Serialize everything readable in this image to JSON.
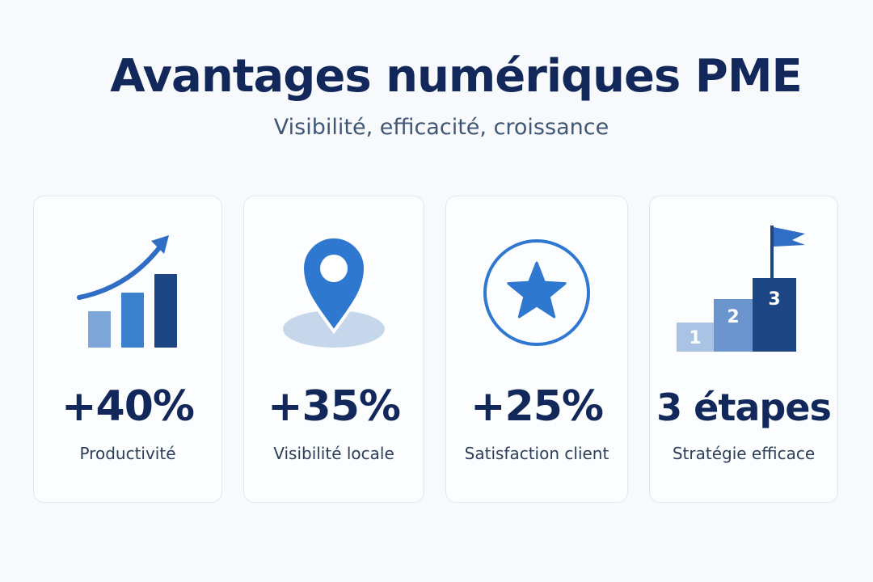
{
  "header": {
    "title": "Avantages numériques PME",
    "subtitle": "Visibilité, efficacité, croissance"
  },
  "cards": [
    {
      "value": "+40%",
      "label": "Productivité",
      "icon": "growth-chart-icon"
    },
    {
      "value": "+35%",
      "label": "Visibilité locale",
      "icon": "location-pin-icon"
    },
    {
      "value": "+25%",
      "label": "Satisfaction client",
      "icon": "star-circle-icon"
    },
    {
      "value": "3 étapes",
      "label": "Stratégie efficace",
      "icon": "podium-flag-icon",
      "steps": [
        "1",
        "2",
        "3"
      ]
    }
  ],
  "colors": {
    "navy": "#12285a",
    "blue": "#2f78d0",
    "light_blue": "#7ea6d8",
    "dark_blue": "#1d4583"
  }
}
